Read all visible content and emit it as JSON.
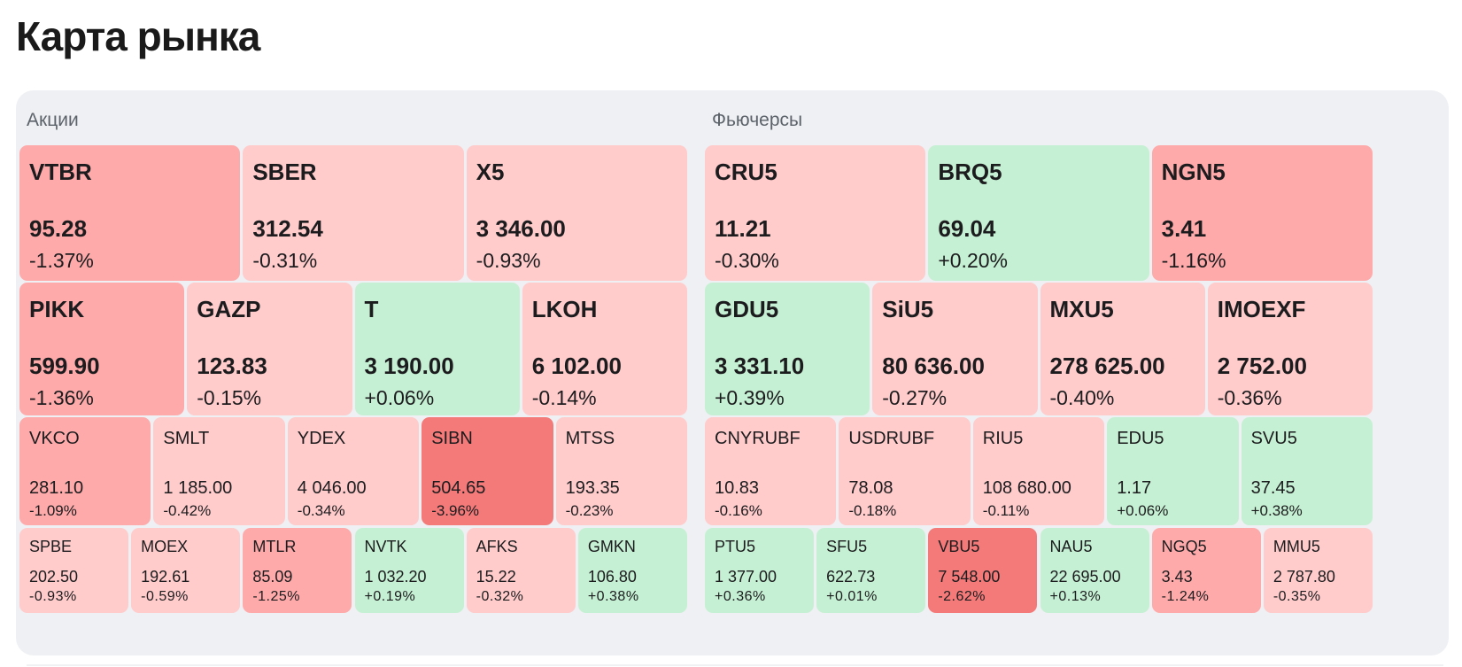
{
  "title": "Карта рынка",
  "sections": [
    {
      "label": "Акции"
    },
    {
      "label": "Фьючерсы"
    }
  ],
  "colors": {
    "up": "#c5f0d3",
    "down_light": "#ffcbcb",
    "down_mid": "#ffaaaa",
    "down_strong": "#f47a7a",
    "panel": "#eef0f3"
  },
  "stocks": {
    "row1": [
      {
        "ticker": "VTBR",
        "price": "95.28",
        "change": "-1.37%"
      },
      {
        "ticker": "SBER",
        "price": "312.54",
        "change": "-0.31%"
      },
      {
        "ticker": "X5",
        "price": "3 346.00",
        "change": "-0.93%"
      }
    ],
    "row2": [
      {
        "ticker": "PIKK",
        "price": "599.90",
        "change": "-1.36%"
      },
      {
        "ticker": "GAZP",
        "price": "123.83",
        "change": "-0.15%"
      },
      {
        "ticker": "T",
        "price": "3 190.00",
        "change": "+0.06%"
      },
      {
        "ticker": "LKOH",
        "price": "6 102.00",
        "change": "-0.14%"
      }
    ],
    "row3": [
      {
        "ticker": "VKCO",
        "price": "281.10",
        "change": "-1.09%"
      },
      {
        "ticker": "SMLT",
        "price": "1 185.00",
        "change": "-0.42%"
      },
      {
        "ticker": "YDEX",
        "price": "4 046.00",
        "change": "-0.34%"
      },
      {
        "ticker": "SIBN",
        "price": "504.65",
        "change": "-3.96%"
      },
      {
        "ticker": "MTSS",
        "price": "193.35",
        "change": "-0.23%"
      }
    ],
    "row4": [
      {
        "ticker": "SPBE",
        "price": "202.50",
        "change": "-0.93%"
      },
      {
        "ticker": "MOEX",
        "price": "192.61",
        "change": "-0.59%"
      },
      {
        "ticker": "MTLR",
        "price": "85.09",
        "change": "-1.25%"
      },
      {
        "ticker": "NVTK",
        "price": "1 032.20",
        "change": "+0.19%"
      },
      {
        "ticker": "AFKS",
        "price": "15.22",
        "change": "-0.32%"
      },
      {
        "ticker": "GMKN",
        "price": "106.80",
        "change": "+0.38%"
      }
    ]
  },
  "futures": {
    "row1": [
      {
        "ticker": "CRU5",
        "price": "11.21",
        "change": "-0.30%"
      },
      {
        "ticker": "BRQ5",
        "price": "69.04",
        "change": "+0.20%"
      },
      {
        "ticker": "NGN5",
        "price": "3.41",
        "change": "-1.16%"
      }
    ],
    "row2": [
      {
        "ticker": "GDU5",
        "price": "3 331.10",
        "change": "+0.39%"
      },
      {
        "ticker": "SiU5",
        "price": "80 636.00",
        "change": "-0.27%"
      },
      {
        "ticker": "MXU5",
        "price": "278 625.00",
        "change": "-0.40%"
      },
      {
        "ticker": "IMOEXF",
        "price": "2 752.00",
        "change": "-0.36%"
      }
    ],
    "row3": [
      {
        "ticker": "CNYRUBF",
        "price": "10.83",
        "change": "-0.16%"
      },
      {
        "ticker": "USDRUBF",
        "price": "78.08",
        "change": "-0.18%"
      },
      {
        "ticker": "RIU5",
        "price": "108 680.00",
        "change": "-0.11%"
      },
      {
        "ticker": "EDU5",
        "price": "1.17",
        "change": "+0.06%"
      },
      {
        "ticker": "SVU5",
        "price": "37.45",
        "change": "+0.38%"
      }
    ],
    "row4": [
      {
        "ticker": "PTU5",
        "price": "1 377.00",
        "change": "+0.36%"
      },
      {
        "ticker": "SFU5",
        "price": "622.73",
        "change": "+0.01%"
      },
      {
        "ticker": "VBU5",
        "price": "7 548.00",
        "change": "-2.62%"
      },
      {
        "ticker": "NAU5",
        "price": "22 695.00",
        "change": "+0.13%"
      },
      {
        "ticker": "NGQ5",
        "price": "3.43",
        "change": "-1.24%"
      },
      {
        "ticker": "MMU5",
        "price": "2 787.80",
        "change": "-0.35%"
      }
    ]
  }
}
